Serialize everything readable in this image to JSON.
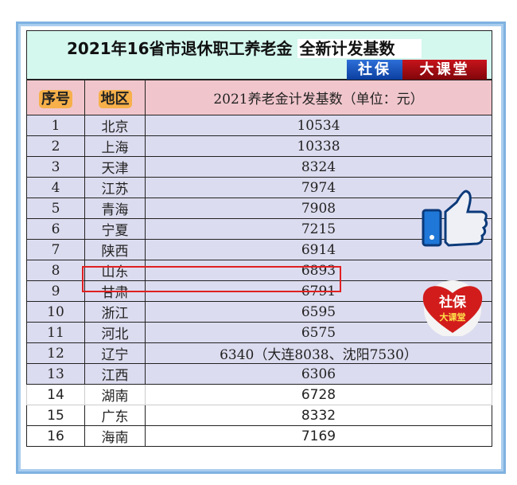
{
  "title": {
    "main": "2021年16省市退休职工养老金",
    "highlight": "全新计发基数"
  },
  "brand": {
    "left": "社保",
    "right": "大课堂"
  },
  "table": {
    "headers": [
      "序号",
      "地区",
      "2021养老金计发基数（单位：元）"
    ],
    "rows": [
      [
        "1",
        "北京",
        "10534"
      ],
      [
        "2",
        "上海",
        "10338"
      ],
      [
        "3",
        "天津",
        "8324"
      ],
      [
        "4",
        "江苏",
        "7974"
      ],
      [
        "5",
        "青海",
        "7908"
      ],
      [
        "6",
        "宁夏",
        "7215"
      ],
      [
        "7",
        "陕西",
        "6914"
      ],
      [
        "8",
        "山东",
        "6893"
      ],
      [
        "9",
        "甘肃",
        "6791"
      ],
      [
        "10",
        "浙江",
        "6595"
      ],
      [
        "11",
        "河北",
        "6575"
      ],
      [
        "12",
        "辽宁",
        "6340（大连8038、沈阳7530）"
      ],
      [
        "13",
        "江西",
        "6306"
      ],
      [
        "14",
        "湖南",
        "6728"
      ],
      [
        "15",
        "广东",
        "8332"
      ],
      [
        "16",
        "海南",
        "7169"
      ]
    ],
    "highlighted_row": 8
  },
  "sticker": {
    "top": "社保",
    "bottom": "大课堂",
    "icon": "heart-icon"
  },
  "thumb": {
    "icon": "thumbs-up-icon"
  },
  "colors": {
    "title_bg": "#d4f7ee",
    "header_bg": "#f0c6cc",
    "row_bg": "#dcdcf0",
    "highlight": "#e02020"
  }
}
